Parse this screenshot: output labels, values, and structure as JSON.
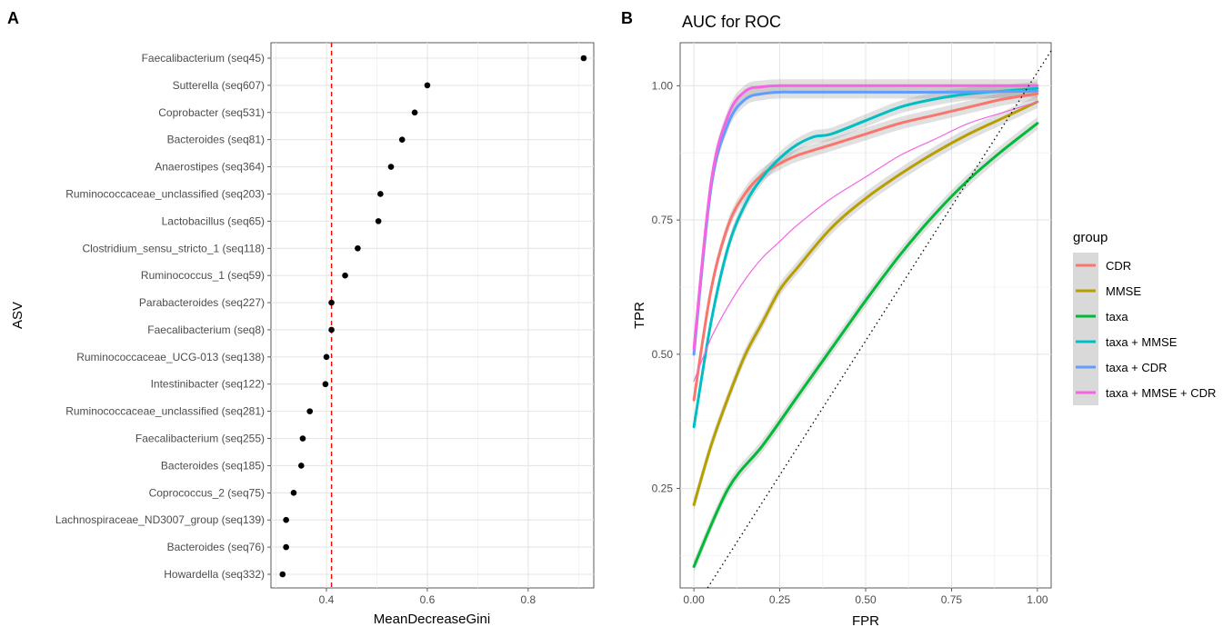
{
  "chart_data": [
    {
      "panel_label": "A",
      "type": "scatter",
      "orientation": "horizontal-dotplot",
      "title": "",
      "xlabel": "MeanDecreaseGini",
      "ylabel": "ASV",
      "xlim": [
        0.29,
        0.93
      ],
      "xticks": [
        0.4,
        0.6,
        0.8
      ],
      "grid": true,
      "reference_line": {
        "x": 0.41,
        "color": "#ff0000",
        "style": "dashed"
      },
      "categories": [
        "Faecalibacterium (seq45)",
        "Sutterella (seq607)",
        "Coprobacter (seq531)",
        "Bacteroides (seq81)",
        "Anaerostipes (seq364)",
        "Ruminococcaceae_unclassified (seq203)",
        "Lactobacillus (seq65)",
        "Clostridium_sensu_stricto_1 (seq118)",
        "Ruminococcus_1 (seq59)",
        "Parabacteroides (seq227)",
        "Faecalibacterium (seq8)",
        "Ruminococcaceae_UCG-013 (seq138)",
        "Intestinibacter (seq122)",
        "Ruminococcaceae_unclassified (seq281)",
        "Faecalibacterium (seq255)",
        "Bacteroides (seq185)",
        "Coprococcus_2 (seq75)",
        "Lachnospiraceae_ND3007_group (seq139)",
        "Bacteroides (seq76)",
        "Howardella (seq332)"
      ],
      "values": [
        0.91,
        0.6,
        0.575,
        0.55,
        0.528,
        0.507,
        0.503,
        0.462,
        0.437,
        0.41,
        0.41,
        0.4,
        0.398,
        0.367,
        0.353,
        0.35,
        0.335,
        0.32,
        0.32,
        0.313
      ]
    },
    {
      "panel_label": "B",
      "type": "line",
      "title": "AUC for ROC",
      "xlabel": "FPR",
      "ylabel": "TPR",
      "xlim": [
        -0.04,
        1.04
      ],
      "ylim": [
        0.065,
        1.08
      ],
      "xticks": [
        0.0,
        0.25,
        0.5,
        0.75,
        1.0
      ],
      "xtick_labels": [
        "0.00",
        "0.25",
        "0.50",
        "0.75",
        "1.00"
      ],
      "yticks": [
        0.25,
        0.5,
        0.75,
        1.0
      ],
      "ytick_labels": [
        "0.25",
        "0.50",
        "0.75",
        "1.00"
      ],
      "grid": true,
      "legend_title": "group",
      "legend_position": "right",
      "reference_line": {
        "type": "diagonal",
        "style": "dotted",
        "color": "#000000"
      },
      "series": [
        {
          "name": "CDR",
          "color": "#F8766D",
          "ribbon": true,
          "x": [
            0,
            0.05,
            0.1,
            0.15,
            0.2,
            0.25,
            0.3,
            0.4,
            0.5,
            0.6,
            0.7,
            0.8,
            0.9,
            1.0
          ],
          "y": [
            0.415,
            0.62,
            0.74,
            0.8,
            0.835,
            0.855,
            0.87,
            0.89,
            0.91,
            0.93,
            0.945,
            0.96,
            0.975,
            0.985
          ]
        },
        {
          "name": "MMSE",
          "color": "#B79F00",
          "ribbon": true,
          "x": [
            0,
            0.05,
            0.1,
            0.15,
            0.2,
            0.25,
            0.3,
            0.4,
            0.5,
            0.6,
            0.7,
            0.8,
            0.9,
            1.0
          ],
          "y": [
            0.22,
            0.33,
            0.42,
            0.5,
            0.56,
            0.62,
            0.66,
            0.735,
            0.79,
            0.835,
            0.875,
            0.91,
            0.94,
            0.97
          ]
        },
        {
          "name": "taxa",
          "color": "#00BA38",
          "ribbon": true,
          "x": [
            0,
            0.1,
            0.2,
            0.3,
            0.4,
            0.5,
            0.6,
            0.7,
            0.8,
            0.9,
            1.0
          ],
          "y": [
            0.105,
            0.25,
            0.33,
            0.42,
            0.51,
            0.6,
            0.685,
            0.76,
            0.825,
            0.88,
            0.93
          ]
        },
        {
          "name": "taxa + MMSE",
          "color": "#00BFC4",
          "ribbon": true,
          "x": [
            0,
            0.05,
            0.1,
            0.15,
            0.2,
            0.25,
            0.3,
            0.35,
            0.4,
            0.5,
            0.6,
            0.7,
            0.8,
            0.9,
            1.0
          ],
          "y": [
            0.365,
            0.56,
            0.7,
            0.78,
            0.83,
            0.865,
            0.89,
            0.905,
            0.91,
            0.935,
            0.96,
            0.975,
            0.985,
            0.99,
            0.995
          ]
        },
        {
          "name": "taxa + CDR",
          "color": "#619CFF",
          "ribbon": true,
          "x": [
            0,
            0.05,
            0.1,
            0.15,
            0.2,
            0.25,
            0.3,
            0.5,
            0.75,
            1.0
          ],
          "y": [
            0.5,
            0.81,
            0.93,
            0.975,
            0.985,
            0.988,
            0.988,
            0.988,
            0.988,
            0.99
          ]
        },
        {
          "name": "taxa + MMSE + CDR",
          "color": "#F564E3",
          "ribbon": true,
          "x": [
            0,
            0.05,
            0.1,
            0.15,
            0.2,
            0.25,
            0.3,
            0.5,
            0.75,
            1.0
          ],
          "y": [
            0.51,
            0.82,
            0.945,
            0.99,
            0.998,
            1.0,
            1.0,
            1.0,
            1.0,
            1.0
          ]
        },
        {
          "name": "",
          "color": "#F564E3",
          "ribbon": false,
          "thin": true,
          "x": [
            0,
            0.05,
            0.1,
            0.15,
            0.2,
            0.25,
            0.3,
            0.4,
            0.5,
            0.6,
            0.7,
            0.8,
            0.9,
            1.0
          ],
          "y": [
            0.45,
            0.53,
            0.59,
            0.64,
            0.68,
            0.71,
            0.74,
            0.79,
            0.83,
            0.87,
            0.9,
            0.93,
            0.95,
            0.97
          ]
        }
      ]
    }
  ]
}
